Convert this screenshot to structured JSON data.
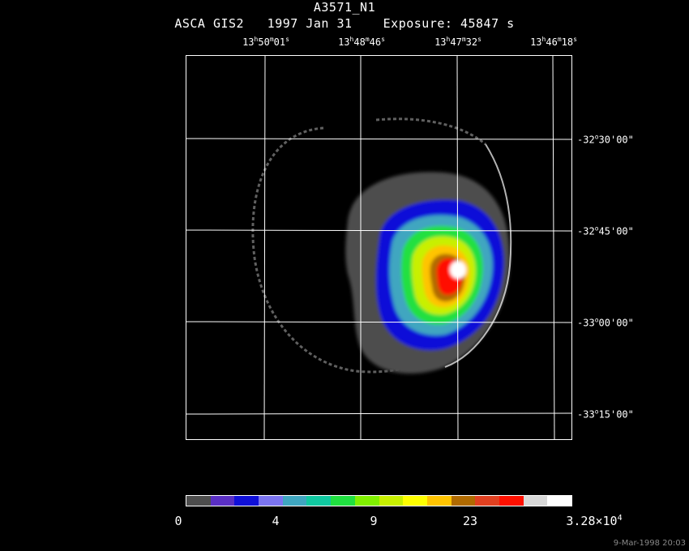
{
  "header": {
    "title": "A3571_N1",
    "subtitle": "ASCA GIS2   1997 Jan 31    Exposure: 45847 s"
  },
  "ra_ticks": [
    {
      "h": "13",
      "m": "50",
      "s": "01"
    },
    {
      "h": "13",
      "m": "48",
      "s": "46"
    },
    {
      "h": "13",
      "m": "47",
      "s": "32"
    },
    {
      "h": "13",
      "m": "46",
      "s": "18"
    }
  ],
  "dec_ticks": [
    {
      "sign": "-",
      "d": "32",
      "m": "30",
      "s": "00"
    },
    {
      "sign": "-",
      "d": "32",
      "m": "45",
      "s": "00"
    },
    {
      "sign": "-",
      "d": "33",
      "m": "00",
      "s": "00"
    },
    {
      "sign": "-",
      "d": "33",
      "m": "15",
      "s": "00"
    }
  ],
  "colorbar": {
    "colors": [
      "#4d4d4d",
      "#5a2fc4",
      "#1010d8",
      "#7b74f0",
      "#3fa6c0",
      "#10c8a0",
      "#20e040",
      "#80f000",
      "#c8f000",
      "#ffff00",
      "#ffc400",
      "#b06a00",
      "#e04020",
      "#ff1000",
      "#d8d8d8",
      "#ffffff"
    ],
    "labels": [
      {
        "text": "0",
        "frac": 0.0
      },
      {
        "text": "4",
        "frac": 0.25
      },
      {
        "text": "9",
        "frac": 0.5
      },
      {
        "text": "23",
        "frac": 0.75
      },
      {
        "text": "3.28×10",
        "sup": "4",
        "frac": 1.0
      }
    ]
  },
  "datestamp": "9-Mar-1998 20:03"
}
